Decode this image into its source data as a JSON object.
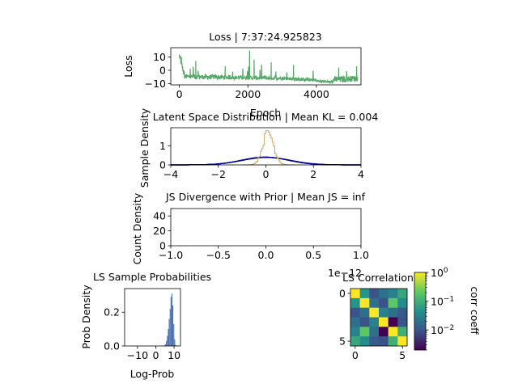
{
  "chart_data": [
    {
      "id": "loss",
      "type": "line",
      "title": "Loss | 7:37:24.925823",
      "xlabel": "Epoch",
      "ylabel": "Loss",
      "xlim": [
        -250,
        5300
      ],
      "ylim": [
        -11,
        17
      ],
      "xticks": [
        0,
        2000,
        4000
      ],
      "yticks": [
        10,
        0,
        -10
      ],
      "grid": false,
      "series": [
        {
          "color": "#55a868",
          "segments": [
            {
              "x0": 0,
              "x1": 150,
              "y0": 10,
              "y1": -5,
              "amp": 5,
              "spike_rate": 0.0
            },
            {
              "x0": 150,
              "x1": 1500,
              "y0": -5.5,
              "y1": -6,
              "amp": 3.5,
              "spike_rate": 0.015
            },
            {
              "x0": 1500,
              "x1": 3000,
              "y0": -6,
              "y1": -6.5,
              "amp": 3.0,
              "spike_rate": 0.02
            },
            {
              "x0": 3000,
              "x1": 4000,
              "y0": -6.5,
              "y1": -8,
              "amp": 2.5,
              "spike_rate": 0.01
            },
            {
              "x0": 4000,
              "x1": 4500,
              "y0": -8.5,
              "y1": -9,
              "amp": 1.5,
              "spike_rate": 0.0
            },
            {
              "x0": 4500,
              "x1": 5200,
              "y0": -8,
              "y1": -7,
              "amp": 4.5,
              "spike_rate": 0.02
            }
          ],
          "spikes": [
            [
              60,
              10
            ],
            [
              480,
              7
            ],
            [
              1340,
              3
            ],
            [
              2050,
              15
            ],
            [
              2180,
              8
            ],
            [
              2680,
              6
            ],
            [
              3330,
              4
            ],
            [
              4650,
              2
            ],
            [
              5170,
              3
            ]
          ]
        }
      ]
    },
    {
      "id": "latent",
      "type": "line",
      "title": "Latent Space Distribution | Mean KL = 0.004",
      "xlabel": "",
      "ylabel": "Sample Density",
      "xlim": [
        -4,
        4
      ],
      "ylim": [
        0,
        1.95
      ],
      "xticks": [
        -4,
        -2,
        0,
        2,
        4
      ],
      "yticks": [
        0,
        1
      ],
      "grid": false,
      "series": [
        {
          "kind": "gaussian",
          "color": "#00008b",
          "mean": 0.0,
          "std": 1.0,
          "count": 6
        },
        {
          "kind": "step_hist",
          "color": "#c8a862",
          "mean": 0.1,
          "std": 0.23,
          "peak": 1.72
        }
      ]
    },
    {
      "id": "js",
      "type": "line",
      "title": "JS Divergence with Prior | Mean JS = inf",
      "xlabel": "",
      "ylabel": "Count Density",
      "xlim": [
        -1.0,
        1.0
      ],
      "ylim": [
        0,
        50
      ],
      "xticks": [
        -1.0,
        -0.5,
        0.0,
        0.5,
        1.0
      ],
      "xtick_labels": [
        "−1.0",
        "−0.5",
        "0.0",
        "0.5",
        "1.0"
      ],
      "offset_text": "1e−12",
      "yticks": [
        0,
        20,
        40
      ],
      "grid": false,
      "series": []
    },
    {
      "id": "logprob",
      "type": "bar",
      "title": "LS Sample Probabilities",
      "xlabel": "Log-Prob",
      "ylabel": "Prob Density",
      "xlim": [
        -17,
        13.5
      ],
      "ylim": [
        0,
        0.34
      ],
      "xticks": [
        -10,
        0,
        10
      ],
      "xtick_labels": [
        "−10",
        "0",
        "10"
      ],
      "yticks": [
        0.0,
        0.2
      ],
      "grid": false,
      "bar_color": "#4c72b0",
      "bins": [
        [
          4.6,
          0.004
        ],
        [
          5.1,
          0.01
        ],
        [
          5.6,
          0.03
        ],
        [
          6.1,
          0.06
        ],
        [
          6.6,
          0.1
        ],
        [
          7.1,
          0.16
        ],
        [
          7.6,
          0.22
        ],
        [
          8.1,
          0.29
        ],
        [
          8.6,
          0.31
        ],
        [
          9.1,
          0.24
        ],
        [
          9.6,
          0.13
        ],
        [
          10.1,
          0.04
        ],
        [
          10.6,
          0.006
        ]
      ],
      "bin_width": 0.5
    },
    {
      "id": "corr",
      "type": "heatmap",
      "title": "LS Correlation",
      "xticks": [
        0,
        5
      ],
      "yticks": [
        0,
        5
      ],
      "matrix": [
        [
          1.0,
          0.05,
          0.01,
          0.02,
          0.03,
          0.08
        ],
        [
          0.05,
          1.0,
          0.02,
          0.01,
          0.2,
          0.04
        ],
        [
          0.01,
          0.02,
          1.0,
          0.03,
          0.02,
          0.012
        ],
        [
          0.02,
          0.01,
          0.03,
          1.0,
          0.002,
          0.01
        ],
        [
          0.03,
          0.2,
          0.02,
          0.002,
          1.0,
          0.1
        ],
        [
          0.08,
          0.04,
          0.012,
          0.01,
          0.1,
          1.0
        ]
      ],
      "colorbar": {
        "label": "corr coeff",
        "scale": "log",
        "range": [
          0.002,
          1.0
        ],
        "ticks": [
          {
            "value": 1,
            "label": "10",
            "exp": "0"
          },
          {
            "value": 0.1,
            "label": "10",
            "exp": "−1"
          },
          {
            "value": 0.01,
            "label": "10",
            "exp": "−2"
          }
        ]
      }
    }
  ]
}
